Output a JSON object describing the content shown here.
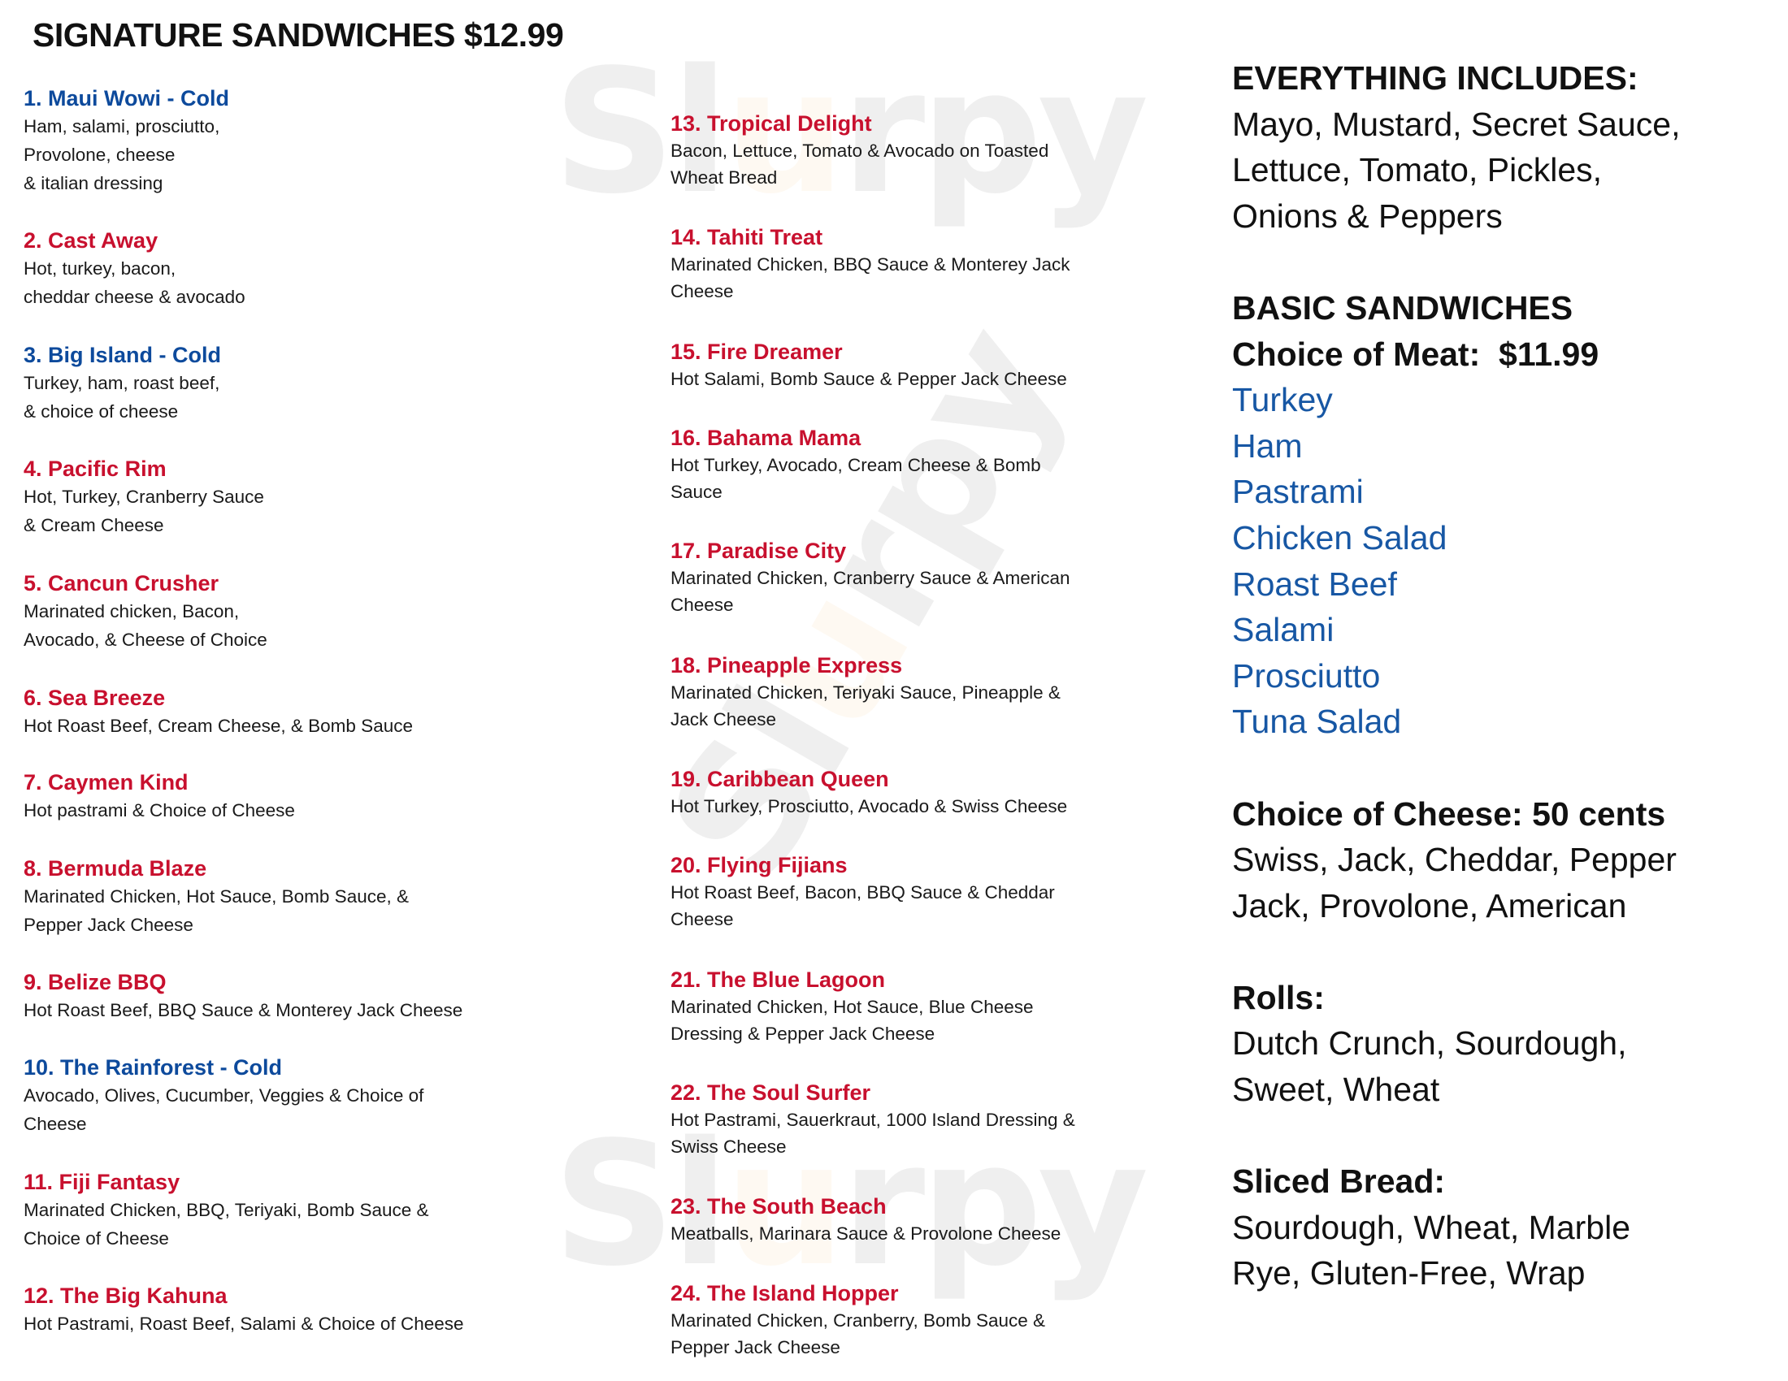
{
  "watermark_logo": "Slurpy",
  "colors": {
    "cold_item": "#0d4a9c",
    "hot_item": "#c8102e",
    "meat_list": "#1757a4",
    "logo_accent": "#f2a33a"
  },
  "title": "SIGNATURE SANDWICHES $12.99",
  "column1": [
    {
      "name": "1. Maui Wowi - Cold",
      "cold": true,
      "lines": [
        "Ham, salami, prosciutto,",
        "Provolone, cheese",
        "& italian dressing"
      ]
    },
    {
      "name": "2. Cast Away",
      "cold": false,
      "lines": [
        "Hot, turkey, bacon,",
        "cheddar cheese & avocado"
      ]
    },
    {
      "name": "3. Big Island - Cold",
      "cold": true,
      "lines": [
        "Turkey, ham, roast beef,",
        "& choice of cheese"
      ]
    },
    {
      "name": "4. Pacific Rim",
      "cold": false,
      "lines": [
        "Hot, Turkey, Cranberry Sauce",
        "& Cream Cheese"
      ]
    },
    {
      "name": "5. Cancun Crusher",
      "cold": false,
      "lines": [
        "Marinated chicken, Bacon,",
        "Avocado, & Cheese of Choice"
      ]
    },
    {
      "name": "6. Sea Breeze",
      "cold": false,
      "lines": [
        "Hot Roast Beef, Cream Cheese, & Bomb Sauce"
      ]
    },
    {
      "name": "7. Caymen Kind",
      "cold": false,
      "lines": [
        "Hot pastrami & Choice of Cheese"
      ]
    },
    {
      "name": "8. Bermuda Blaze",
      "cold": false,
      "lines": [
        "Marinated Chicken, Hot Sauce, Bomb Sauce, &",
        "Pepper Jack Cheese"
      ]
    },
    {
      "name": "9. Belize BBQ",
      "cold": false,
      "lines": [
        "Hot Roast Beef, BBQ Sauce & Monterey Jack Cheese"
      ]
    },
    {
      "name": "10. The Rainforest - Cold",
      "cold": true,
      "lines": [
        "Avocado, Olives, Cucumber, Veggies & Choice of",
        "Cheese"
      ]
    },
    {
      "name": "11. Fiji Fantasy",
      "cold": false,
      "lines": [
        "Marinated Chicken, BBQ, Teriyaki, Bomb Sauce &",
        "Choice of Cheese"
      ]
    },
    {
      "name": "12. The Big Kahuna",
      "cold": false,
      "lines": [
        "Hot Pastrami, Roast Beef, Salami & Choice of Cheese"
      ]
    }
  ],
  "column2": [
    {
      "name": "13. Tropical Delight",
      "cold": false,
      "lines": [
        "Bacon, Lettuce, Tomato & Avocado on Toasted",
        "Wheat Bread"
      ]
    },
    {
      "name": "14. Tahiti Treat",
      "cold": false,
      "lines": [
        "Marinated Chicken, BBQ Sauce & Monterey Jack",
        "Cheese"
      ]
    },
    {
      "name": "15. Fire Dreamer",
      "cold": false,
      "lines": [
        "Hot Salami, Bomb Sauce & Pepper Jack Cheese"
      ]
    },
    {
      "name": "16. Bahama Mama",
      "cold": false,
      "lines": [
        "Hot Turkey, Avocado, Cream Cheese & Bomb",
        "Sauce"
      ]
    },
    {
      "name": "17. Paradise City",
      "cold": false,
      "lines": [
        "Marinated Chicken, Cranberry Sauce & American",
        "Cheese"
      ]
    },
    {
      "name": "18. Pineapple Express",
      "cold": false,
      "lines": [
        "Marinated Chicken, Teriyaki Sauce, Pineapple &",
        "Jack Cheese"
      ]
    },
    {
      "name": "19. Caribbean Queen",
      "cold": false,
      "lines": [
        "Hot Turkey, Prosciutto, Avocado & Swiss Cheese"
      ]
    },
    {
      "name": "20. Flying Fijians",
      "cold": false,
      "lines": [
        "Hot Roast Beef, Bacon, BBQ Sauce & Cheddar",
        "Cheese"
      ]
    },
    {
      "name": "21. The Blue Lagoon",
      "cold": false,
      "lines": [
        "Marinated Chicken, Hot Sauce, Blue Cheese",
        "Dressing & Pepper Jack Cheese"
      ]
    },
    {
      "name": "22. The Soul Surfer",
      "cold": false,
      "lines": [
        "Hot Pastrami, Sauerkraut, 1000 Island Dressing &",
        "Swiss Cheese"
      ]
    },
    {
      "name": "23. The South Beach",
      "cold": false,
      "lines": [
        "Meatballs, Marinara Sauce & Provolone Cheese"
      ]
    },
    {
      "name": "24. The Island Hopper",
      "cold": false,
      "lines": [
        "Marinated Chicken, Cranberry, Bomb Sauce &",
        "Pepper Jack Cheese"
      ]
    }
  ],
  "right": {
    "includes": {
      "heading": "EVERYTHING INCLUDES:",
      "lines": [
        "Mayo, Mustard, Secret Sauce,",
        "Lettuce, Tomato, Pickles,",
        "Onions & Peppers"
      ]
    },
    "basic": {
      "heading": "BASIC SANDWICHES",
      "subheading": "Choice of Meat:  $11.99",
      "meats": [
        "Turkey",
        "Ham",
        "Pastrami",
        "Chicken Salad",
        "Roast Beef",
        "Salami",
        "Prosciutto",
        "Tuna Salad"
      ]
    },
    "cheese": {
      "heading": "Choice of Cheese: 50 cents",
      "lines": [
        "Swiss, Jack, Cheddar, Pepper",
        "Jack, Provolone, American"
      ]
    },
    "rolls": {
      "heading": "Rolls:",
      "lines": [
        "Dutch Crunch, Sourdough,",
        "Sweet, Wheat"
      ]
    },
    "sliced": {
      "heading": "Sliced Bread:",
      "lines": [
        "Sourdough, Wheat, Marble",
        "Rye, Gluten-Free, Wrap"
      ]
    }
  }
}
